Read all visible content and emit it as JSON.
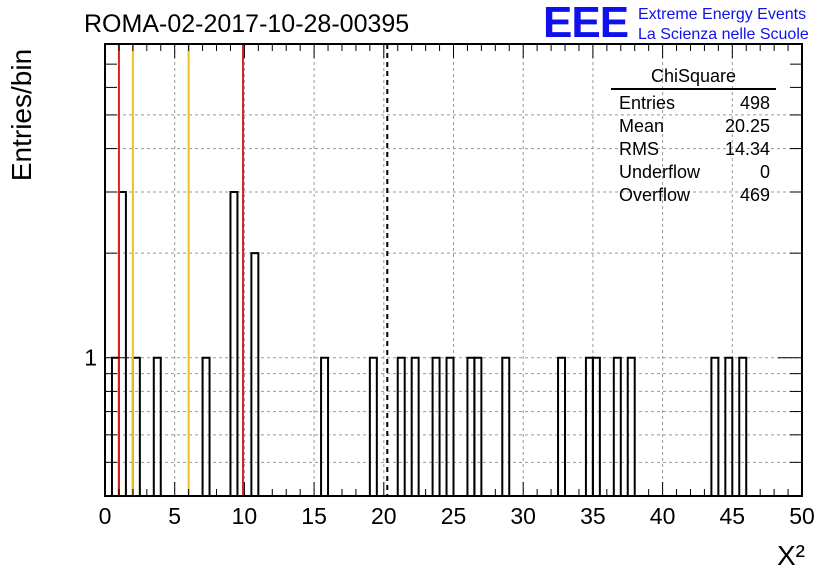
{
  "chart_data": {
    "type": "bar",
    "title": "ROMA-02-2017-10-28-00395",
    "xlabel": "X²",
    "ylabel": "Entries/bin",
    "xlim": [
      0,
      50
    ],
    "y_scale": "log",
    "ylim": [
      0.4,
      8
    ],
    "bin_width": 0.5,
    "x_ticks": [
      "0",
      "5",
      "10",
      "15",
      "20",
      "25",
      "30",
      "35",
      "40",
      "45",
      "50"
    ],
    "y_ticks": [
      "1"
    ],
    "grid": true,
    "bins": [
      {
        "x": 0.5,
        "y": 1
      },
      {
        "x": 1.0,
        "y": 3
      },
      {
        "x": 2.0,
        "y": 1
      },
      {
        "x": 3.5,
        "y": 1
      },
      {
        "x": 7.0,
        "y": 1
      },
      {
        "x": 9.0,
        "y": 3
      },
      {
        "x": 10.5,
        "y": 2
      },
      {
        "x": 15.5,
        "y": 1
      },
      {
        "x": 19.0,
        "y": 1
      },
      {
        "x": 21.0,
        "y": 1
      },
      {
        "x": 22.0,
        "y": 1
      },
      {
        "x": 23.5,
        "y": 1
      },
      {
        "x": 24.5,
        "y": 1
      },
      {
        "x": 26.0,
        "y": 1
      },
      {
        "x": 26.5,
        "y": 1
      },
      {
        "x": 28.5,
        "y": 1
      },
      {
        "x": 32.5,
        "y": 1
      },
      {
        "x": 34.5,
        "y": 1
      },
      {
        "x": 35.0,
        "y": 1
      },
      {
        "x": 36.5,
        "y": 1
      },
      {
        "x": 37.5,
        "y": 1
      },
      {
        "x": 43.5,
        "y": 1
      },
      {
        "x": 44.5,
        "y": 1
      },
      {
        "x": 45.5,
        "y": 1
      }
    ],
    "reference_lines": [
      {
        "x": 1.0,
        "color": "#dd2222",
        "style": "solid"
      },
      {
        "x": 2.0,
        "color": "#f0c020",
        "style": "solid"
      },
      {
        "x": 6.0,
        "color": "#f0c020",
        "style": "solid"
      },
      {
        "x": 9.9,
        "color": "#dd2222",
        "style": "solid"
      },
      {
        "x": 20.25,
        "color": "#000000",
        "style": "dashed"
      }
    ],
    "stats_box": {
      "title": "ChiSquare",
      "rows": [
        {
          "label": "Entries",
          "value": "498"
        },
        {
          "label": "Mean",
          "value": "20.25"
        },
        {
          "label": "RMS",
          "value": "14.34"
        },
        {
          "label": "Underflow",
          "value": "0"
        },
        {
          "label": "Overflow",
          "value": "469"
        }
      ]
    }
  },
  "logo": {
    "mark": "EEE",
    "line1": "Extreme Energy Events",
    "line2": "La Scienza nelle Scuole",
    "color": "#1010ee"
  }
}
